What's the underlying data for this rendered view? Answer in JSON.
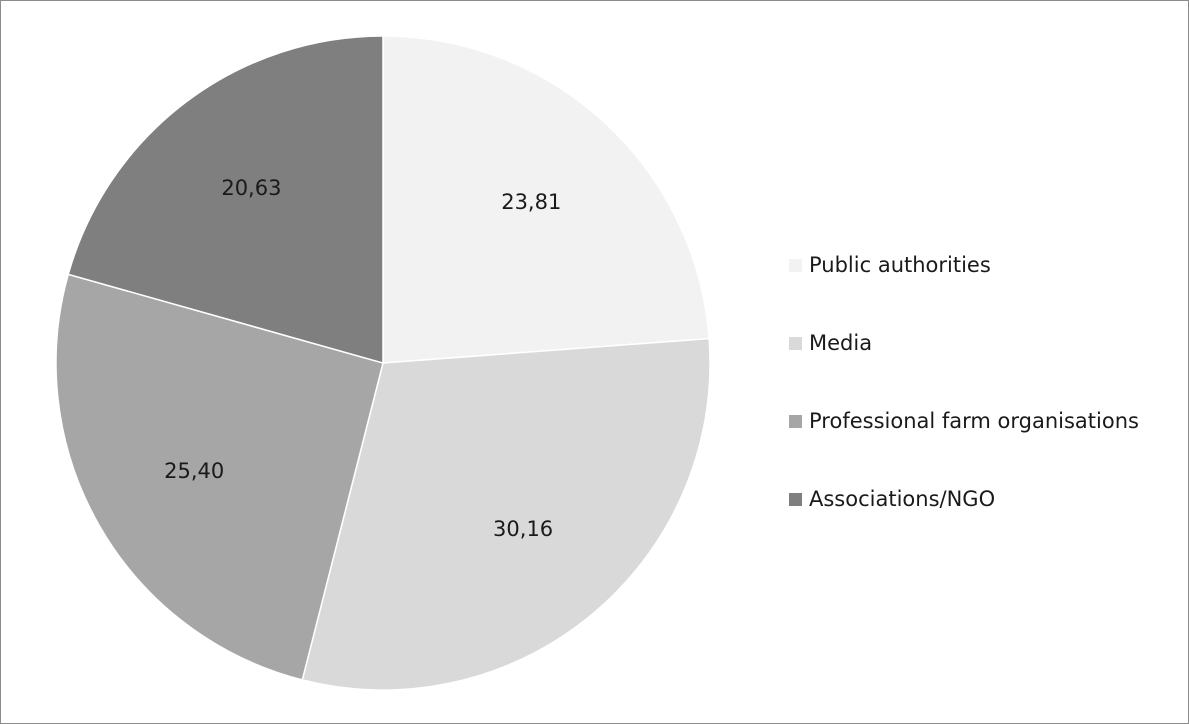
{
  "chart_data": {
    "type": "pie",
    "title": "",
    "categories": [
      "Public authorities",
      "Media",
      "Professional farm organisations",
      "Associations/NGO"
    ],
    "values": [
      23.81,
      30.16,
      25.4,
      20.63
    ],
    "value_labels": [
      "23,81",
      "30,16",
      "25,40",
      "20,63"
    ],
    "colors": [
      "#f2f2f2",
      "#d9d9d9",
      "#a6a6a6",
      "#7f7f7f"
    ],
    "start_angle": "12 o'clock",
    "direction": "clockwise",
    "legend_position": "right"
  }
}
